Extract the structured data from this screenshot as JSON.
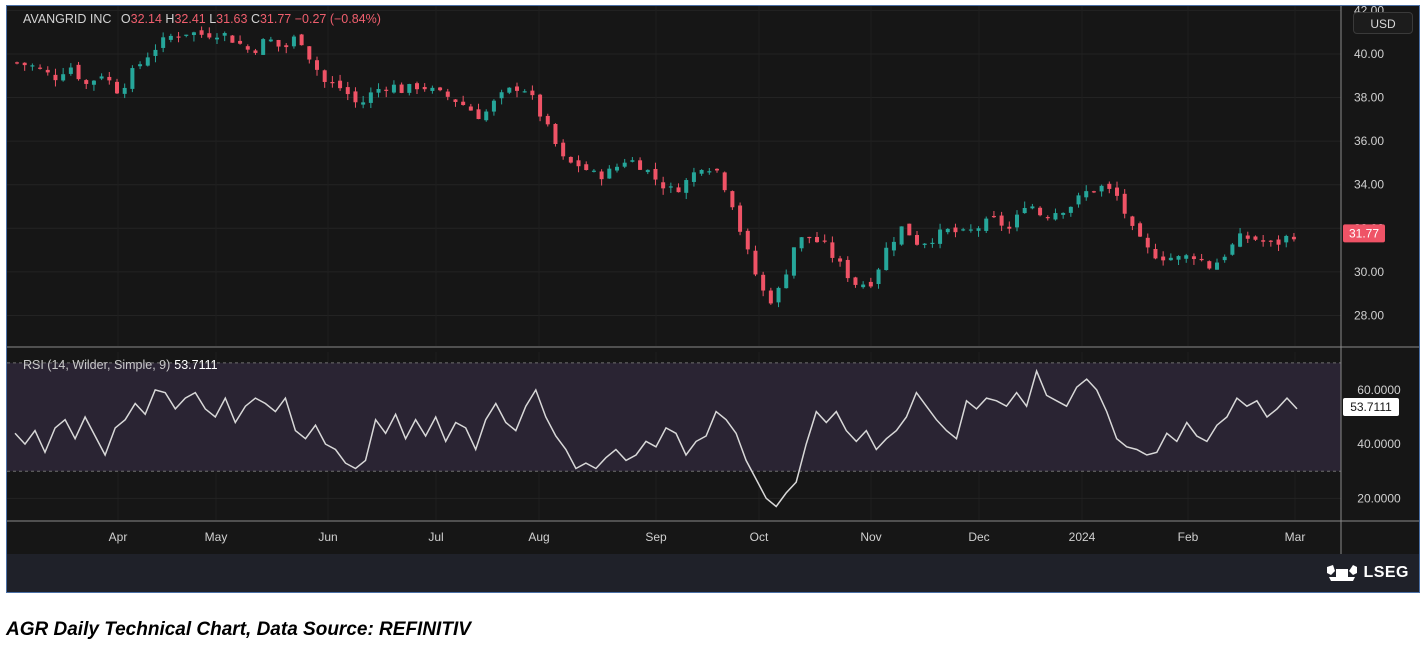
{
  "header": {
    "symbol": "AVANGRID INC",
    "open_label": "O",
    "open": "32.14",
    "high_label": "H",
    "high": "32.41",
    "low_label": "L",
    "low": "31.63",
    "close_label": "C",
    "close": "31.77",
    "change": "−0.27 (−0.84%)"
  },
  "currency": "USD",
  "rsi_header": {
    "label": "RSI (14, Wilder, Simple, 9)",
    "value": "53.7111"
  },
  "logo_text": "LSEG",
  "caption": "AGR Daily Technical Chart, Data Source: REFINITIV",
  "colors": {
    "up": "#26a69a",
    "down": "#ef5366",
    "rsi_line": "#d8d8d8",
    "rsi_band": "#2a2433",
    "background": "#161616"
  },
  "chart_data": [
    {
      "type": "candlestick",
      "ylim": [
        26.6,
        42.2
      ],
      "y_ticks": [
        "28.00",
        "30.00",
        "32.00",
        "34.00",
        "36.00",
        "38.00",
        "40.00",
        "42.00"
      ],
      "x_ticks": [
        "Apr",
        "May",
        "Jun",
        "Jul",
        "Aug",
        "Sep",
        "Oct",
        "Nov",
        "Dec",
        "2024",
        "Feb",
        "Mar"
      ],
      "last_price_label": "31.77",
      "close_path": [
        [
          0,
          39.6
        ],
        [
          12,
          39.4
        ],
        [
          24,
          38.9
        ],
        [
          34,
          39.5
        ],
        [
          45,
          38.6
        ],
        [
          55,
          39.1
        ],
        [
          66,
          38.3
        ],
        [
          78,
          39.4
        ],
        [
          88,
          40.2
        ],
        [
          100,
          40.8
        ],
        [
          110,
          41.0
        ],
        [
          120,
          40.9
        ],
        [
          132,
          41.0
        ],
        [
          142,
          40.6
        ],
        [
          152,
          40.1
        ],
        [
          163,
          40.7
        ],
        [
          173,
          40.2
        ],
        [
          183,
          40.9
        ],
        [
          190,
          39.9
        ],
        [
          200,
          38.7
        ],
        [
          212,
          38.4
        ],
        [
          222,
          37.6
        ],
        [
          232,
          38.3
        ],
        [
          242,
          38.6
        ],
        [
          252,
          38.3
        ],
        [
          262,
          38.6
        ],
        [
          272,
          38.2
        ],
        [
          282,
          38.0
        ],
        [
          292,
          37.6
        ],
        [
          302,
          37.1
        ],
        [
          312,
          37.9
        ],
        [
          320,
          38.3
        ],
        [
          328,
          38.6
        ],
        [
          336,
          37.8
        ],
        [
          346,
          36.4
        ],
        [
          356,
          35.0
        ],
        [
          366,
          34.9
        ],
        [
          376,
          34.4
        ],
        [
          386,
          34.6
        ],
        [
          396,
          35.2
        ],
        [
          406,
          34.9
        ],
        [
          416,
          34.2
        ],
        [
          426,
          33.7
        ],
        [
          436,
          34.2
        ],
        [
          446,
          35.0
        ],
        [
          456,
          34.6
        ],
        [
          466,
          33.0
        ],
        [
          472,
          31.4
        ],
        [
          480,
          29.9
        ],
        [
          488,
          28.6
        ],
        [
          496,
          29.2
        ],
        [
          506,
          31.4
        ],
        [
          516,
          31.6
        ],
        [
          526,
          31.1
        ],
        [
          536,
          30.2
        ],
        [
          546,
          29.4
        ],
        [
          556,
          29.6
        ],
        [
          566,
          31.2
        ],
        [
          576,
          32.1
        ],
        [
          586,
          31.3
        ],
        [
          596,
          31.6
        ],
        [
          606,
          31.9
        ],
        [
          616,
          31.7
        ],
        [
          626,
          32.1
        ],
        [
          636,
          32.4
        ],
        [
          646,
          31.9
        ],
        [
          656,
          33.3
        ],
        [
          666,
          32.6
        ],
        [
          676,
          32.8
        ],
        [
          686,
          33.1
        ],
        [
          696,
          33.7
        ],
        [
          706,
          33.9
        ],
        [
          716,
          33.4
        ],
        [
          726,
          31.7
        ],
        [
          736,
          30.9
        ],
        [
          746,
          30.7
        ],
        [
          756,
          30.6
        ],
        [
          766,
          30.8
        ],
        [
          776,
          30.2
        ],
        [
          786,
          30.9
        ],
        [
          796,
          31.6
        ],
        [
          806,
          31.5
        ],
        [
          816,
          31.2
        ],
        [
          826,
          31.6
        ],
        [
          832,
          31.8
        ]
      ]
    },
    {
      "type": "line",
      "name": "RSI (14, Wilder, Simple, 9)",
      "ylim": [
        12,
        74
      ],
      "y_ticks": [
        "20.0000",
        "40.0000",
        "60.0000"
      ],
      "bands": [
        30,
        70
      ],
      "last_value_label": "53.7111",
      "values": [
        44,
        40,
        45,
        37,
        46,
        49,
        42,
        50,
        43,
        36,
        46,
        49,
        55,
        51,
        60,
        59,
        53,
        57,
        59,
        53,
        50,
        57,
        48,
        54,
        57,
        55,
        52,
        57,
        45,
        42,
        47,
        40,
        38,
        33,
        31,
        34,
        49,
        44,
        51,
        42,
        49,
        43,
        50,
        41,
        48,
        46,
        38,
        49,
        55,
        48,
        45,
        54,
        60,
        50,
        43,
        38,
        31,
        33,
        31,
        35,
        38,
        34,
        36,
        41,
        39,
        46,
        44,
        36,
        41,
        43,
        52,
        49,
        44,
        34,
        27,
        20,
        17,
        22,
        26,
        40,
        52,
        48,
        52,
        45,
        41,
        45,
        38,
        42,
        45,
        50,
        59,
        54,
        49,
        45,
        42,
        56,
        53,
        57,
        56,
        54,
        59,
        54,
        67,
        58,
        56,
        54,
        61,
        64,
        60,
        52,
        42,
        39,
        38,
        36,
        37,
        44,
        41,
        48,
        43,
        41,
        47,
        50,
        57,
        54,
        56,
        50,
        53,
        57,
        53
      ]
    }
  ]
}
